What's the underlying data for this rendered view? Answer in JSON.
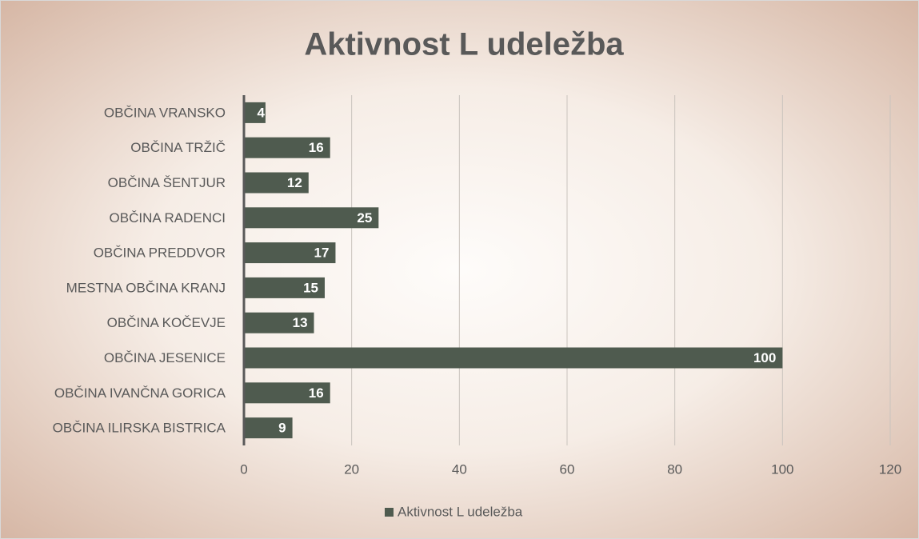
{
  "chart_data": {
    "type": "hbar",
    "title": "Aktivnost L udeležba",
    "categories": [
      "OBČINA VRANSKO",
      "OBČINA TRŽIČ",
      "OBČINA ŠENTJUR",
      "OBČINA RADENCI",
      "OBČINA PREDDVOR",
      "MESTNA OBČINA KRANJ",
      "OBČINA KOČEVJE",
      "OBČINA JESENICE",
      "OBČINA IVANČNA GORICA",
      "OBČINA ILIRSKA BISTRICA"
    ],
    "series": [
      {
        "name": "Aktivnost L udeležba",
        "color": "#4f5b4f",
        "values": [
          4,
          16,
          12,
          25,
          17,
          15,
          13,
          100,
          16,
          9
        ]
      }
    ],
    "xlim": [
      0,
      120
    ],
    "xticks": [
      0,
      20,
      40,
      60,
      80,
      100,
      120
    ],
    "grid": true,
    "legend": "bottom"
  }
}
